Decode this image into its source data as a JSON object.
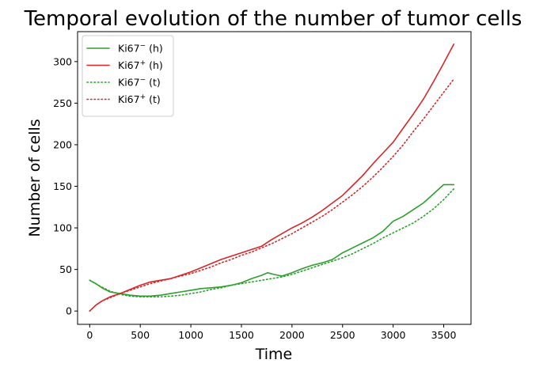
{
  "chart_data": {
    "type": "line",
    "title": "Temporal evolution of the number of tumor cells",
    "xlabel": "Time",
    "ylabel": "Number of cells",
    "xlim": [
      -120,
      3770
    ],
    "ylim": [
      -16,
      336
    ],
    "xticks": [
      0,
      500,
      1000,
      1500,
      2000,
      2500,
      3000,
      3500
    ],
    "yticks": [
      0,
      50,
      100,
      150,
      200,
      250,
      300
    ],
    "grid": false,
    "legend_position": "top-left",
    "series": [
      {
        "name_base": "Ki67",
        "name_sup": "−",
        "name_suffix": " (h)",
        "color": "#2ca02c",
        "dash": "solid",
        "points": [
          [
            0,
            37
          ],
          [
            60,
            33
          ],
          [
            120,
            28
          ],
          [
            200,
            23
          ],
          [
            300,
            21
          ],
          [
            400,
            19
          ],
          [
            500,
            18
          ],
          [
            600,
            18
          ],
          [
            700,
            19
          ],
          [
            800,
            21
          ],
          [
            900,
            23
          ],
          [
            1000,
            25
          ],
          [
            1100,
            27
          ],
          [
            1200,
            28
          ],
          [
            1300,
            29
          ],
          [
            1400,
            31
          ],
          [
            1500,
            34
          ],
          [
            1600,
            39
          ],
          [
            1700,
            43
          ],
          [
            1760,
            46
          ],
          [
            1820,
            44
          ],
          [
            1900,
            42
          ],
          [
            2000,
            46
          ],
          [
            2100,
            51
          ],
          [
            2200,
            55
          ],
          [
            2300,
            58
          ],
          [
            2400,
            62
          ],
          [
            2500,
            70
          ],
          [
            2600,
            76
          ],
          [
            2700,
            82
          ],
          [
            2800,
            88
          ],
          [
            2900,
            96
          ],
          [
            3000,
            108
          ],
          [
            3100,
            114
          ],
          [
            3200,
            122
          ],
          [
            3300,
            130
          ],
          [
            3400,
            141
          ],
          [
            3500,
            152
          ],
          [
            3600,
            152
          ]
        ]
      },
      {
        "name_base": "Ki67",
        "name_sup": "+",
        "name_suffix": " (h)",
        "color": "#d62728",
        "dash": "solid",
        "points": [
          [
            0,
            0
          ],
          [
            60,
            7
          ],
          [
            120,
            12
          ],
          [
            200,
            17
          ],
          [
            300,
            21
          ],
          [
            400,
            26
          ],
          [
            500,
            31
          ],
          [
            600,
            35
          ],
          [
            700,
            37
          ],
          [
            800,
            39
          ],
          [
            900,
            43
          ],
          [
            1000,
            47
          ],
          [
            1100,
            52
          ],
          [
            1200,
            57
          ],
          [
            1300,
            62
          ],
          [
            1400,
            66
          ],
          [
            1500,
            70
          ],
          [
            1600,
            74
          ],
          [
            1700,
            78
          ],
          [
            1800,
            86
          ],
          [
            1900,
            93
          ],
          [
            2000,
            100
          ],
          [
            2100,
            106
          ],
          [
            2200,
            113
          ],
          [
            2300,
            121
          ],
          [
            2400,
            130
          ],
          [
            2500,
            139
          ],
          [
            2600,
            151
          ],
          [
            2700,
            163
          ],
          [
            2800,
            177
          ],
          [
            2900,
            190
          ],
          [
            3000,
            203
          ],
          [
            3100,
            220
          ],
          [
            3200,
            237
          ],
          [
            3300,
            255
          ],
          [
            3400,
            276
          ],
          [
            3500,
            298
          ],
          [
            3600,
            321
          ]
        ]
      },
      {
        "name_base": "Ki67",
        "name_sup": "−",
        "name_suffix": " (t)",
        "color": "#2ca02c",
        "dash": "dotted",
        "points": [
          [
            0,
            37
          ],
          [
            100,
            30
          ],
          [
            200,
            24
          ],
          [
            300,
            20
          ],
          [
            400,
            18
          ],
          [
            500,
            17
          ],
          [
            600,
            17
          ],
          [
            700,
            17
          ],
          [
            800,
            18
          ],
          [
            900,
            19
          ],
          [
            1000,
            21
          ],
          [
            1100,
            23
          ],
          [
            1200,
            26
          ],
          [
            1300,
            28
          ],
          [
            1400,
            31
          ],
          [
            1500,
            33
          ],
          [
            1600,
            35
          ],
          [
            1700,
            37
          ],
          [
            1800,
            39
          ],
          [
            1900,
            41
          ],
          [
            2000,
            44
          ],
          [
            2100,
            48
          ],
          [
            2200,
            52
          ],
          [
            2300,
            56
          ],
          [
            2400,
            60
          ],
          [
            2500,
            64
          ],
          [
            2600,
            69
          ],
          [
            2700,
            75
          ],
          [
            2800,
            81
          ],
          [
            2900,
            88
          ],
          [
            3000,
            94
          ],
          [
            3100,
            100
          ],
          [
            3200,
            106
          ],
          [
            3300,
            114
          ],
          [
            3400,
            123
          ],
          [
            3500,
            134
          ],
          [
            3600,
            147
          ]
        ]
      },
      {
        "name_base": "Ki67",
        "name_sup": "+",
        "name_suffix": " (t)",
        "color": "#d62728",
        "dash": "dotted",
        "points": [
          [
            0,
            0
          ],
          [
            60,
            7
          ],
          [
            120,
            12
          ],
          [
            200,
            16
          ],
          [
            300,
            21
          ],
          [
            400,
            25
          ],
          [
            500,
            29
          ],
          [
            600,
            33
          ],
          [
            700,
            36
          ],
          [
            800,
            39
          ],
          [
            900,
            42
          ],
          [
            1000,
            45
          ],
          [
            1100,
            49
          ],
          [
            1200,
            53
          ],
          [
            1300,
            58
          ],
          [
            1400,
            62
          ],
          [
            1500,
            67
          ],
          [
            1600,
            71
          ],
          [
            1700,
            76
          ],
          [
            1800,
            81
          ],
          [
            1900,
            87
          ],
          [
            2000,
            93
          ],
          [
            2100,
            100
          ],
          [
            2200,
            107
          ],
          [
            2300,
            114
          ],
          [
            2400,
            122
          ],
          [
            2500,
            131
          ],
          [
            2600,
            140
          ],
          [
            2700,
            150
          ],
          [
            2800,
            161
          ],
          [
            2900,
            173
          ],
          [
            3000,
            186
          ],
          [
            3100,
            200
          ],
          [
            3200,
            216
          ],
          [
            3300,
            231
          ],
          [
            3400,
            247
          ],
          [
            3500,
            263
          ],
          [
            3600,
            279
          ]
        ]
      }
    ]
  }
}
